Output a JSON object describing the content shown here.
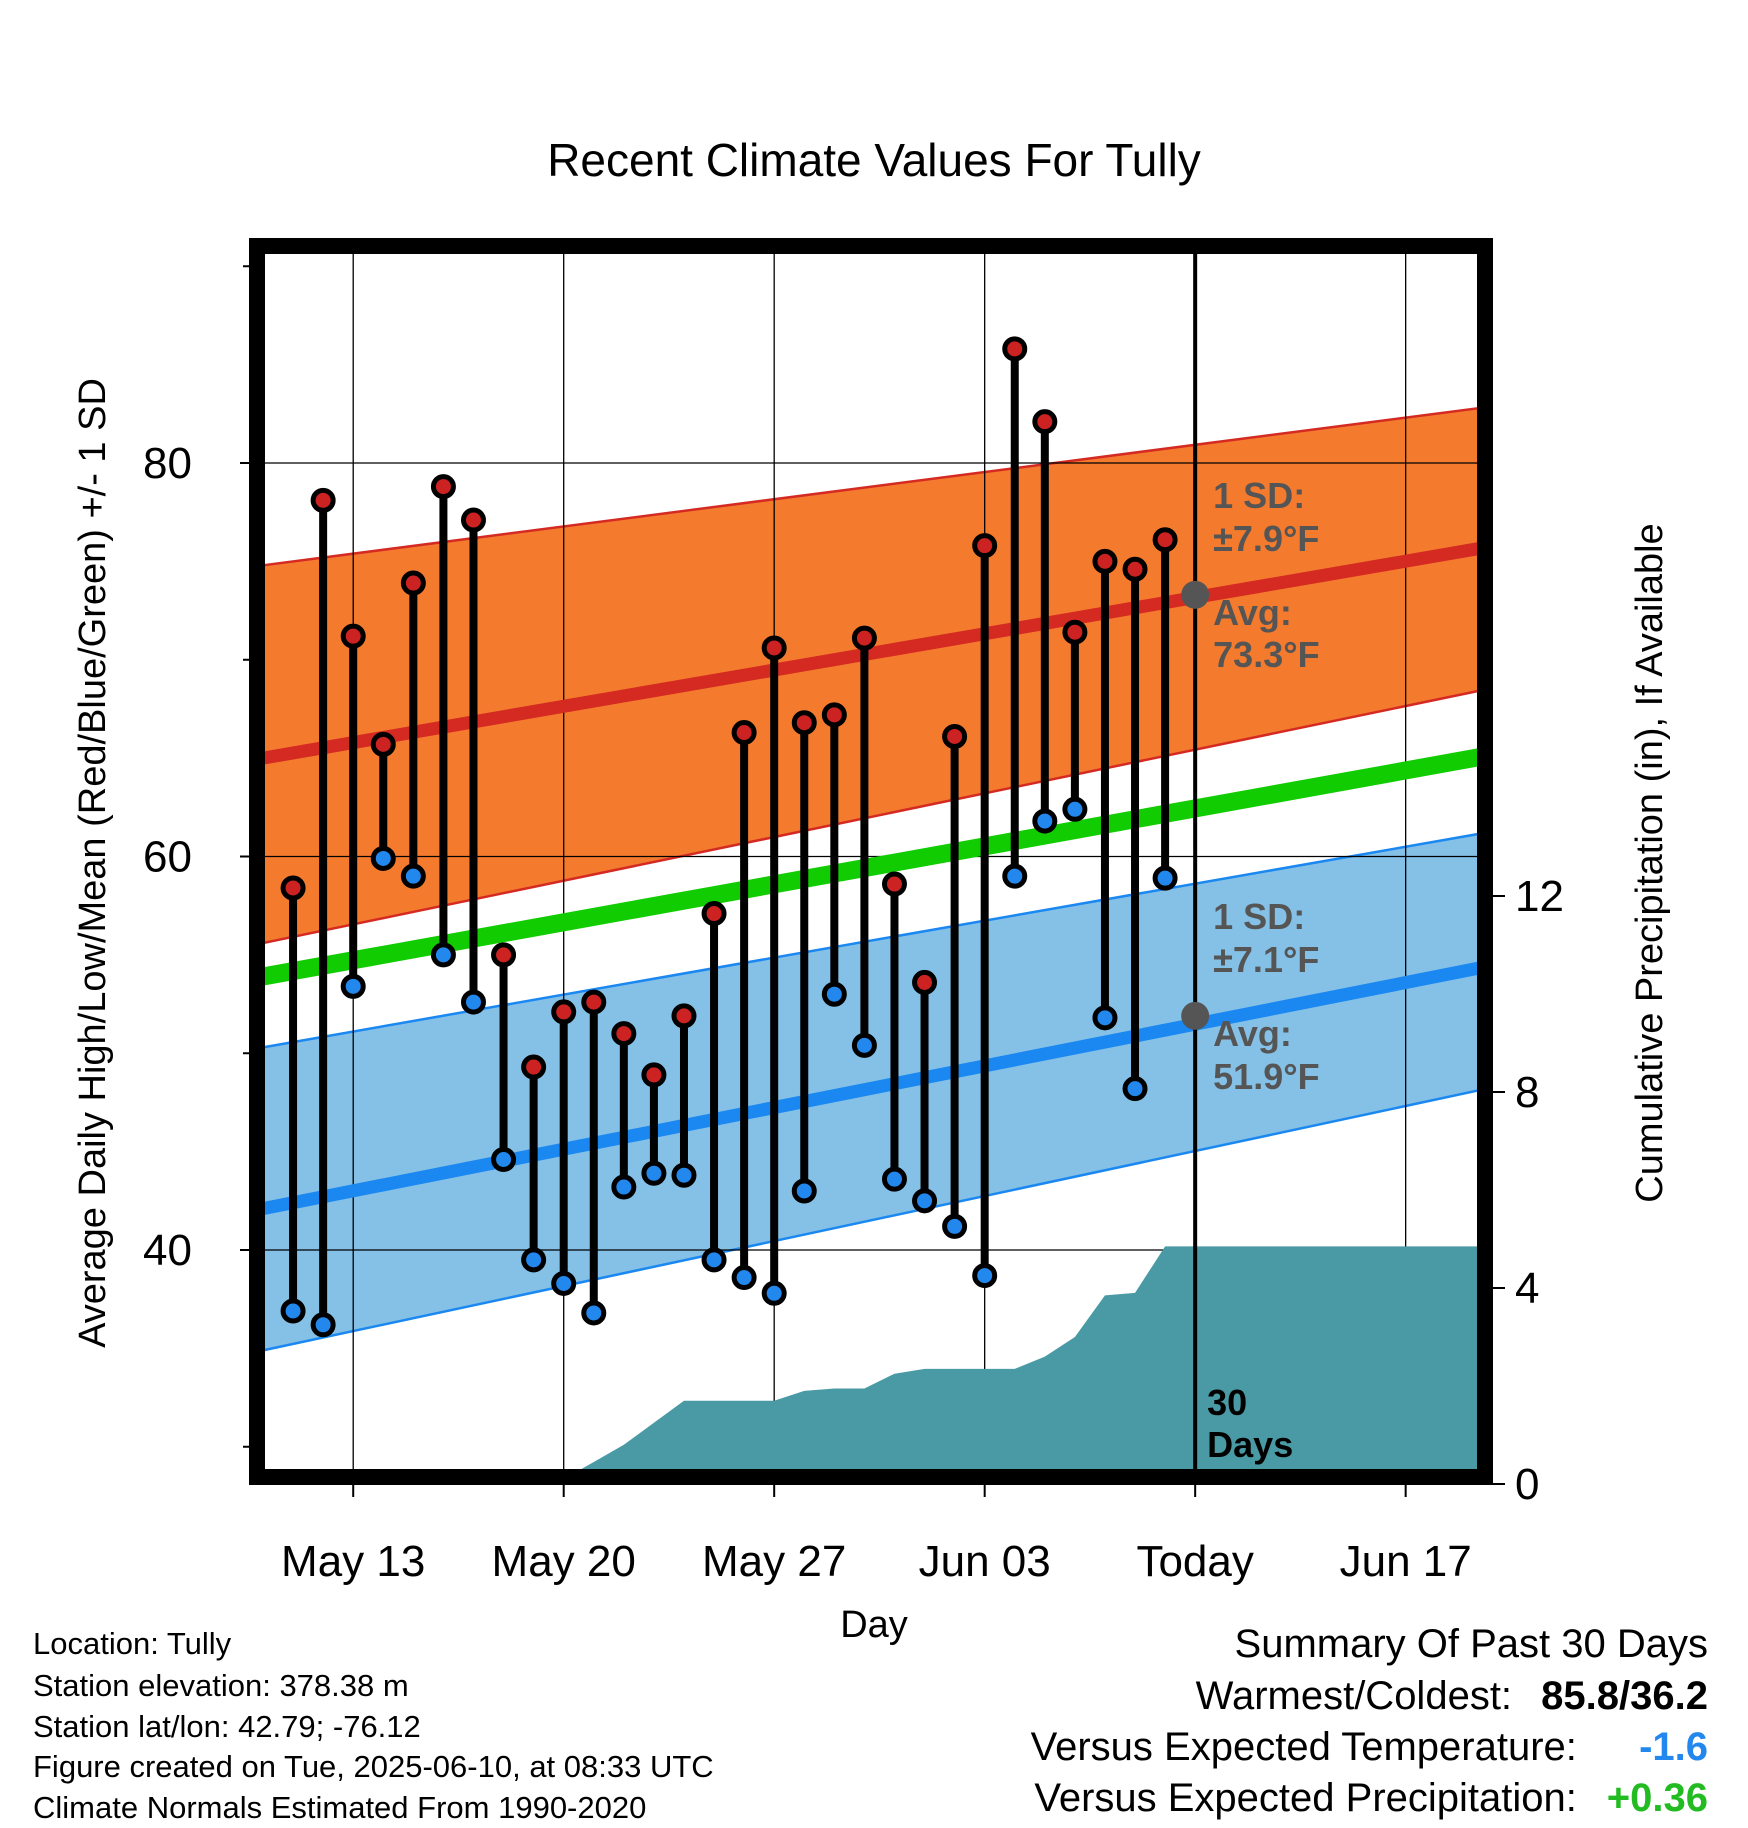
{
  "chart_data": {
    "type": "line",
    "title": "Recent Climate Values For Tully",
    "xlabel": "Day",
    "ylabel": "Average Daily High/Low/Mean (Red/Blue/Green) +/- 1 SD",
    "y2label": "Cumulative Precipitation (in), If Available",
    "x_start": "May 10",
    "x_end": "Jun 20",
    "x_ticks": [
      {
        "day": 3,
        "label": "May 13"
      },
      {
        "day": 10,
        "label": "May 20"
      },
      {
        "day": 17,
        "label": "May 27"
      },
      {
        "day": 24,
        "label": "Jun 03"
      },
      {
        "day": 31,
        "label": "Today"
      },
      {
        "day": 38,
        "label": "Jun 17"
      }
    ],
    "ylim": [
      28.5,
      91.5
    ],
    "y_ticks": [
      40,
      60,
      80
    ],
    "y_minor_ticks": [
      30,
      50,
      70,
      90
    ],
    "y2lim": [
      0,
      18
    ],
    "y2_ticks": [
      0,
      4,
      8,
      12
    ],
    "grid": true,
    "today_day": 31,
    "days_label": [
      "30",
      "Days"
    ],
    "normals": {
      "x": [
        0,
        41
      ],
      "high_mean": [
        65.0,
        75.8
      ],
      "high_upper": [
        74.8,
        82.9
      ],
      "high_lower": [
        55.6,
        68.6
      ],
      "mean": [
        53.9,
        65.2
      ],
      "low_mean": [
        42.1,
        54.5
      ],
      "low_upper": [
        50.3,
        61.3
      ],
      "low_lower": [
        34.9,
        48.3
      ]
    },
    "annotations": {
      "high_sd": "1 SD:",
      "high_sd_value": "±7.9°F",
      "high_avg": "Avg:",
      "high_avg_value": "73.3°F",
      "high_avg_y": 73.3,
      "low_sd": "1 SD:",
      "low_sd_value": "±7.1°F",
      "low_avg": "Avg:",
      "low_avg_value": "51.9°F",
      "low_avg_y": 51.9
    },
    "series": [
      {
        "name": "High",
        "color": "#cc2222",
        "x": [
          1,
          2,
          3,
          4,
          5,
          6,
          7,
          8,
          9,
          10,
          11,
          12,
          13,
          14,
          15,
          16,
          17,
          18,
          19,
          20,
          21,
          22,
          23,
          24,
          25,
          26,
          27,
          28,
          29,
          30
        ],
        "values": [
          58.4,
          78.1,
          71.2,
          65.7,
          73.9,
          78.8,
          77.1,
          55.0,
          49.3,
          52.1,
          52.6,
          51.0,
          48.9,
          51.9,
          57.1,
          66.3,
          70.6,
          66.8,
          67.2,
          71.1,
          58.6,
          53.6,
          66.1,
          75.8,
          85.8,
          82.1,
          71.4,
          75.0,
          74.6,
          76.1
        ]
      },
      {
        "name": "Low",
        "color": "#2288ee",
        "x": [
          1,
          2,
          3,
          4,
          5,
          6,
          7,
          8,
          9,
          10,
          11,
          12,
          13,
          14,
          15,
          16,
          17,
          18,
          19,
          20,
          21,
          22,
          23,
          24,
          25,
          26,
          27,
          28,
          29,
          30
        ],
        "values": [
          36.9,
          36.2,
          53.4,
          59.9,
          59.0,
          55.0,
          52.6,
          44.6,
          39.5,
          38.3,
          36.8,
          43.2,
          43.9,
          43.8,
          39.5,
          38.6,
          37.8,
          43.0,
          53.0,
          50.4,
          43.6,
          42.5,
          41.2,
          38.7,
          59.0,
          61.8,
          62.4,
          51.8,
          48.2,
          58.9
        ]
      },
      {
        "name": "Precipitation",
        "color": "#4a9aa5",
        "axis": "y2",
        "x": [
          0,
          7,
          8,
          9,
          10,
          11,
          12,
          13,
          14,
          15,
          16,
          17,
          18,
          19,
          20,
          21,
          22,
          23,
          24,
          25,
          26,
          27,
          28,
          29,
          30,
          31,
          41
        ],
        "values": [
          0,
          0,
          0.1,
          0.1,
          0.1,
          0.45,
          0.8,
          1.25,
          1.7,
          1.7,
          1.7,
          1.7,
          1.9,
          1.95,
          1.95,
          2.25,
          2.35,
          2.35,
          2.35,
          2.35,
          2.6,
          3.0,
          3.85,
          3.9,
          4.85,
          4.85,
          4.85
        ]
      }
    ]
  },
  "footer": {
    "location": "Location: Tully",
    "elevation": "Station elevation: 378.38 m",
    "latlon": "Station lat/lon: 42.79; -76.12",
    "created": "Figure created on Tue, 2025-06-10, at 08:33 UTC",
    "normals": "Climate Normals Estimated From 1990-2020"
  },
  "summary": {
    "heading": "Summary Of Past 30 Days",
    "warm_cold_label": "Warmest/Coldest:",
    "warm_cold_value": "85.8/36.2",
    "temp_label": "Versus Expected Temperature:",
    "temp_value": "-1.6",
    "temp_color": "#2288ee",
    "precip_label": "Versus Expected Precipitation:",
    "precip_value": "+0.36",
    "precip_color": "#22bb22"
  },
  "colors": {
    "high_band": "#f47b2e",
    "high_line": "#d42a22",
    "mean_line": "#11cc00",
    "low_band": "#85c1e7",
    "low_line": "#1a88f0",
    "precip_fill": "#4a9aa5",
    "avg_marker": "#555555"
  }
}
